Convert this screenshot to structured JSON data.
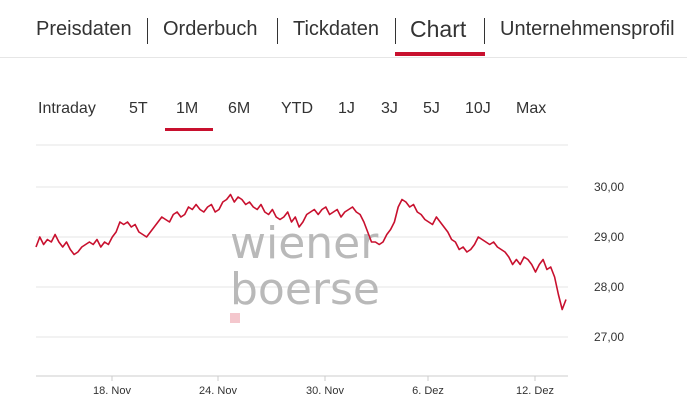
{
  "tabs": [
    "Preisdaten",
    "Orderbuch",
    "Tickdaten",
    "Chart",
    "Unternehmensprofil"
  ],
  "ranges": [
    "Intraday",
    "5T",
    "1M",
    "6M",
    "YTD",
    "1J",
    "3J",
    "5J",
    "10J",
    "Max"
  ],
  "watermark": [
    "wiener",
    "boerse"
  ],
  "colors": {
    "accent": "#c8102e",
    "watermark_square": "#f4c7cd"
  },
  "chart_data": {
    "type": "line",
    "x_ticks": [
      "18. Nov",
      "24. Nov",
      "30. Nov",
      "6. Dez",
      "12. Dez"
    ],
    "y_ticks": [
      "30,00",
      "29,00",
      "28,00",
      "27,00"
    ],
    "ylim": [
      26.5,
      30.5
    ],
    "series": [
      {
        "values": [
          28.8,
          29.0,
          28.85,
          28.95,
          28.9,
          29.05,
          28.9,
          28.8,
          28.9,
          28.75,
          28.65,
          28.7,
          28.8,
          28.85,
          28.9,
          28.85,
          28.95,
          28.8,
          28.9,
          28.85,
          29.0,
          29.1,
          29.3,
          29.25,
          29.3,
          29.2,
          29.25,
          29.1,
          29.05,
          29.0,
          29.1,
          29.2,
          29.3,
          29.4,
          29.35,
          29.3,
          29.45,
          29.5,
          29.4,
          29.45,
          29.6,
          29.55,
          29.65,
          29.55,
          29.5,
          29.6,
          29.65,
          29.5,
          29.55,
          29.7,
          29.75,
          29.85,
          29.7,
          29.8,
          29.75,
          29.65,
          29.7,
          29.6,
          29.55,
          29.65,
          29.5,
          29.45,
          29.55,
          29.4,
          29.35,
          29.4,
          29.5,
          29.3,
          29.4,
          29.2,
          29.3,
          29.45,
          29.5,
          29.55,
          29.45,
          29.55,
          29.6,
          29.45,
          29.5,
          29.55,
          29.4,
          29.5,
          29.55,
          29.6,
          29.5,
          29.45,
          29.3,
          29.1,
          28.9,
          28.9,
          28.85,
          28.9,
          29.05,
          29.15,
          29.3,
          29.6,
          29.75,
          29.7,
          29.6,
          29.65,
          29.5,
          29.45,
          29.35,
          29.3,
          29.25,
          29.4,
          29.3,
          29.2,
          29.1,
          28.95,
          28.9,
          28.75,
          28.8,
          28.7,
          28.75,
          28.85,
          29.0,
          28.95,
          28.9,
          28.85,
          28.9,
          28.8,
          28.75,
          28.7,
          28.6,
          28.45,
          28.55,
          28.45,
          28.6,
          28.55,
          28.45,
          28.3,
          28.45,
          28.55,
          28.35,
          28.4,
          28.2,
          27.85,
          27.55,
          27.75
        ]
      }
    ],
    "grid": true
  }
}
